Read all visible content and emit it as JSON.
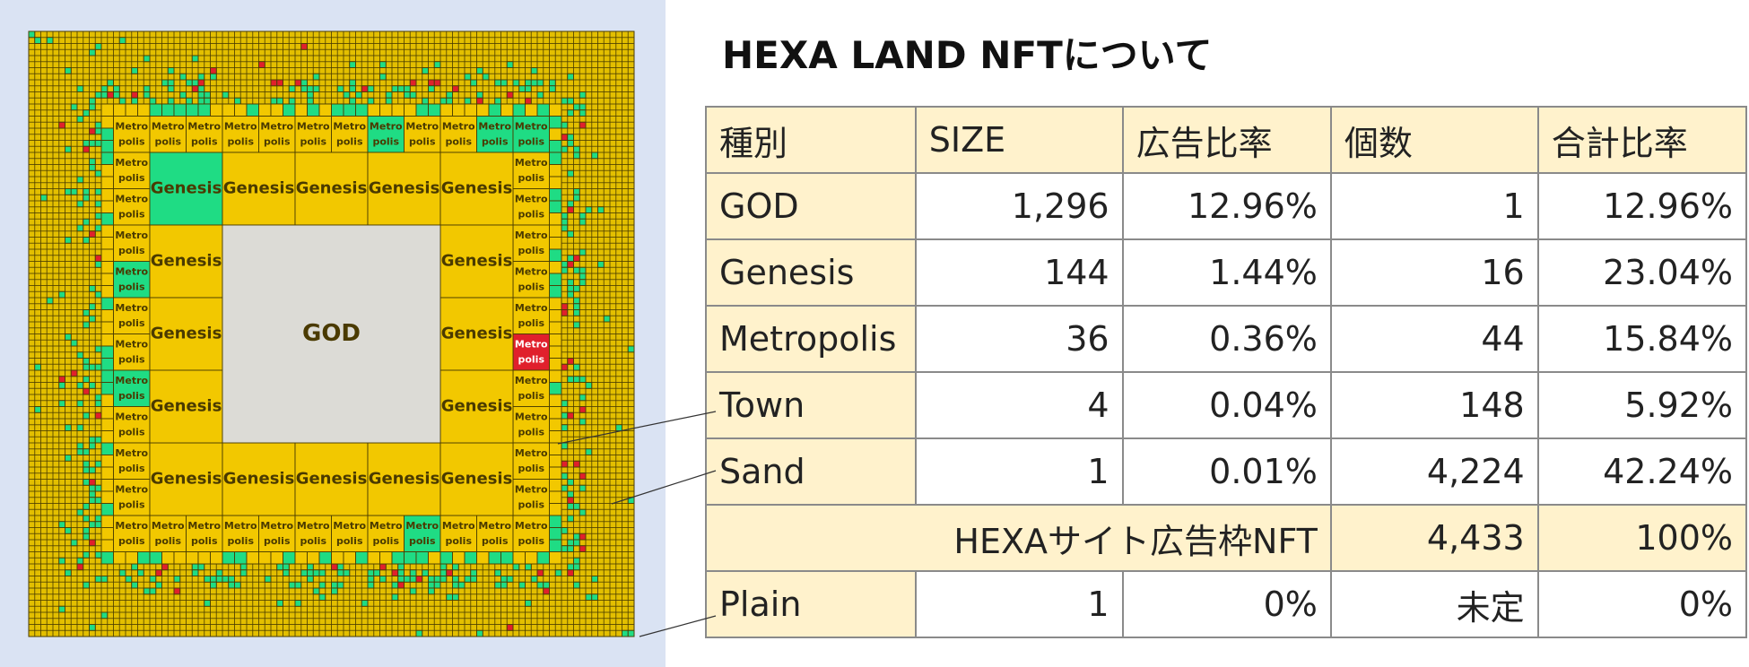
{
  "title": "HEXA LAND NFTについて",
  "map": {
    "god_label": "GOD",
    "genesis_label": "Genesis",
    "metro_label_1": "Metro",
    "metro_label_2": "polis"
  },
  "table": {
    "header": [
      "種別",
      "SIZE",
      "広告比率",
      "個数",
      "合計比率"
    ],
    "rows": [
      [
        "GOD",
        "1,296",
        "12.96%",
        "1",
        "12.96%"
      ],
      [
        "Genesis",
        "144",
        "1.44%",
        "16",
        "23.04%"
      ],
      [
        "Metropolis",
        "36",
        "0.36%",
        "44",
        "15.84%"
      ],
      [
        "Town",
        "4",
        "0.04%",
        "148",
        "5.92%"
      ],
      [
        "Sand",
        "1",
        "0.01%",
        "4,224",
        "42.24%"
      ],
      [
        "HEXAサイト広告枠NFT",
        "4,433",
        "100%"
      ],
      [
        "Plain",
        "1",
        "0%",
        "未定",
        "0%"
      ]
    ]
  }
}
